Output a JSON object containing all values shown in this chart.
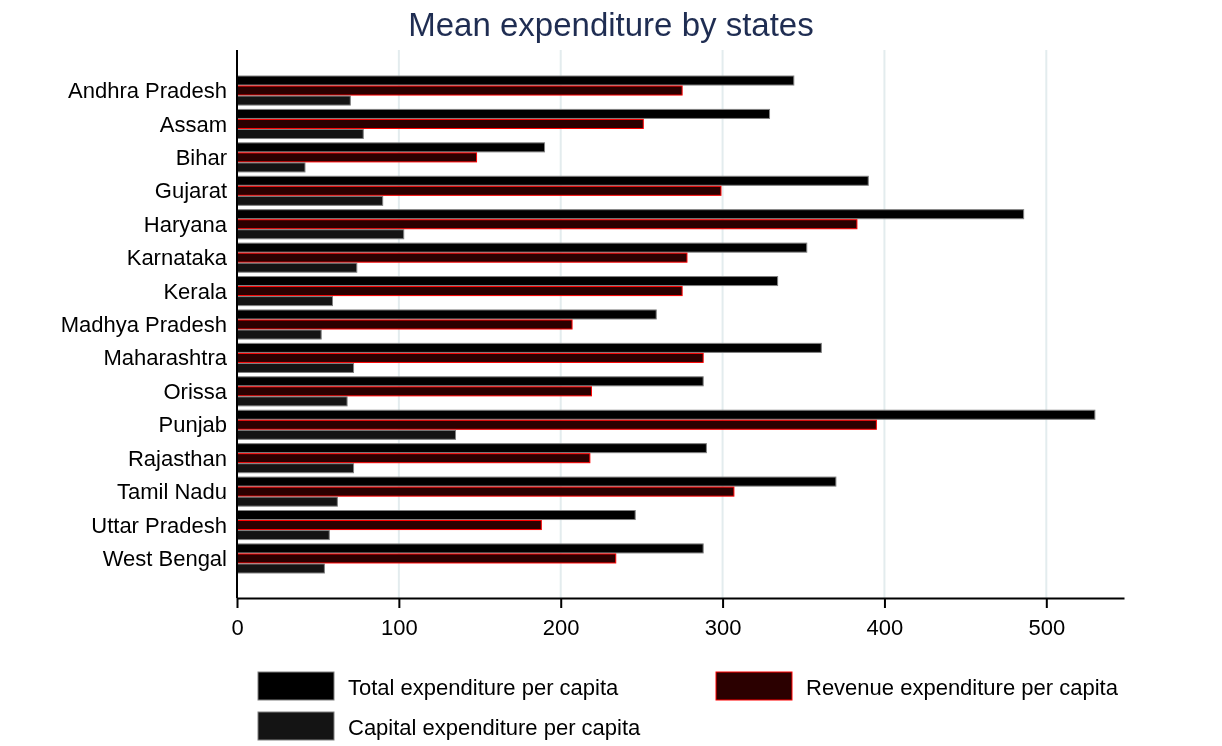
{
  "chart_data": {
    "type": "bar",
    "orientation": "horizontal",
    "title": "Mean expenditure by states",
    "categories": [
      "Andhra Pradesh",
      "Assam",
      "Bihar",
      "Gujarat",
      "Haryana",
      "Karnataka",
      "Kerala",
      "Madhya Pradesh",
      "Maharashtra",
      "Orissa",
      "Punjab",
      "Rajasthan",
      "Tamil Nadu",
      "Uttar Pradesh",
      "West Bengal"
    ],
    "series": [
      {
        "name": "Total expenditure per capita",
        "color": "#000000",
        "values": [
          344,
          329,
          190,
          390,
          486,
          352,
          334,
          259,
          361,
          288,
          530,
          290,
          370,
          246,
          288
        ]
      },
      {
        "name": "Revenue expenditure per capita",
        "color": "#2b0000",
        "values": [
          275,
          251,
          148,
          299,
          383,
          278,
          275,
          207,
          288,
          219,
          395,
          218,
          307,
          188,
          234
        ]
      },
      {
        "name": "Capital expenditure per capita",
        "color": "#141414",
        "values": [
          70,
          78,
          42,
          90,
          103,
          74,
          59,
          52,
          72,
          68,
          135,
          72,
          62,
          57,
          54
        ]
      }
    ],
    "xlim": [
      0,
      548
    ],
    "xticks": [
      0,
      100,
      200,
      300,
      400,
      500
    ],
    "grid": "x",
    "legend": "bottom"
  }
}
